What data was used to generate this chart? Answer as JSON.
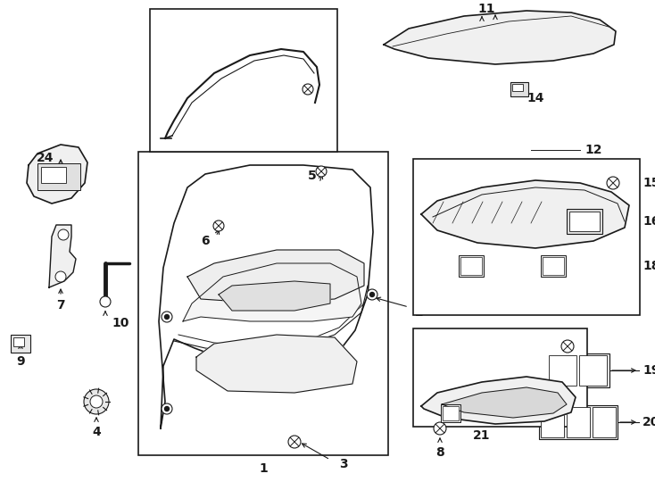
{
  "bg_color": "#ffffff",
  "line_color": "#1a1a1a",
  "fig_width": 7.34,
  "fig_height": 5.4,
  "dpi": 100,
  "lw": 1.0,
  "fs": 10
}
